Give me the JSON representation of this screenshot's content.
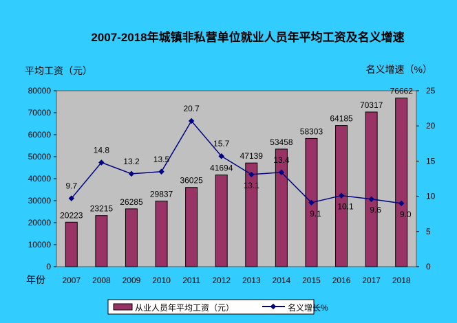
{
  "chart_data": {
    "type": "bar+line",
    "title": "2007-2018年城镇非私营单位就业人员年平均工资及名义增速",
    "ylabel_left": "平均工资（元）",
    "ylabel_right": "名义增速（%）",
    "xlabel": "年份",
    "categories": [
      "2007",
      "2008",
      "2009",
      "2010",
      "2011",
      "2012",
      "2013",
      "2014",
      "2015",
      "2016",
      "2017",
      "2018"
    ],
    "ylim_left": [
      0,
      80000
    ],
    "yticks_left": [
      0,
      10000,
      20000,
      30000,
      40000,
      50000,
      60000,
      70000,
      80000
    ],
    "ylim_right": [
      0,
      25
    ],
    "yticks_right": [
      0,
      5,
      10,
      15,
      20,
      25
    ],
    "grid": false,
    "legend_position": "bottom",
    "series": [
      {
        "name": "从业人员年平均工资（元）",
        "type": "bar",
        "axis": "left",
        "color": "#993366",
        "values": [
          20223,
          23215,
          26285,
          29837,
          36025,
          41694,
          47139,
          53458,
          58303,
          64185,
          70317,
          76662
        ]
      },
      {
        "name": "名义增长%",
        "type": "line",
        "axis": "right",
        "color": "#000080",
        "values": [
          9.7,
          14.8,
          13.2,
          13.5,
          20.7,
          15.7,
          13.1,
          13.4,
          9.1,
          10.1,
          9.6,
          9.0
        ]
      }
    ]
  },
  "colors": {
    "background": "#33ccff",
    "plot_area": "#c0c0c0"
  }
}
